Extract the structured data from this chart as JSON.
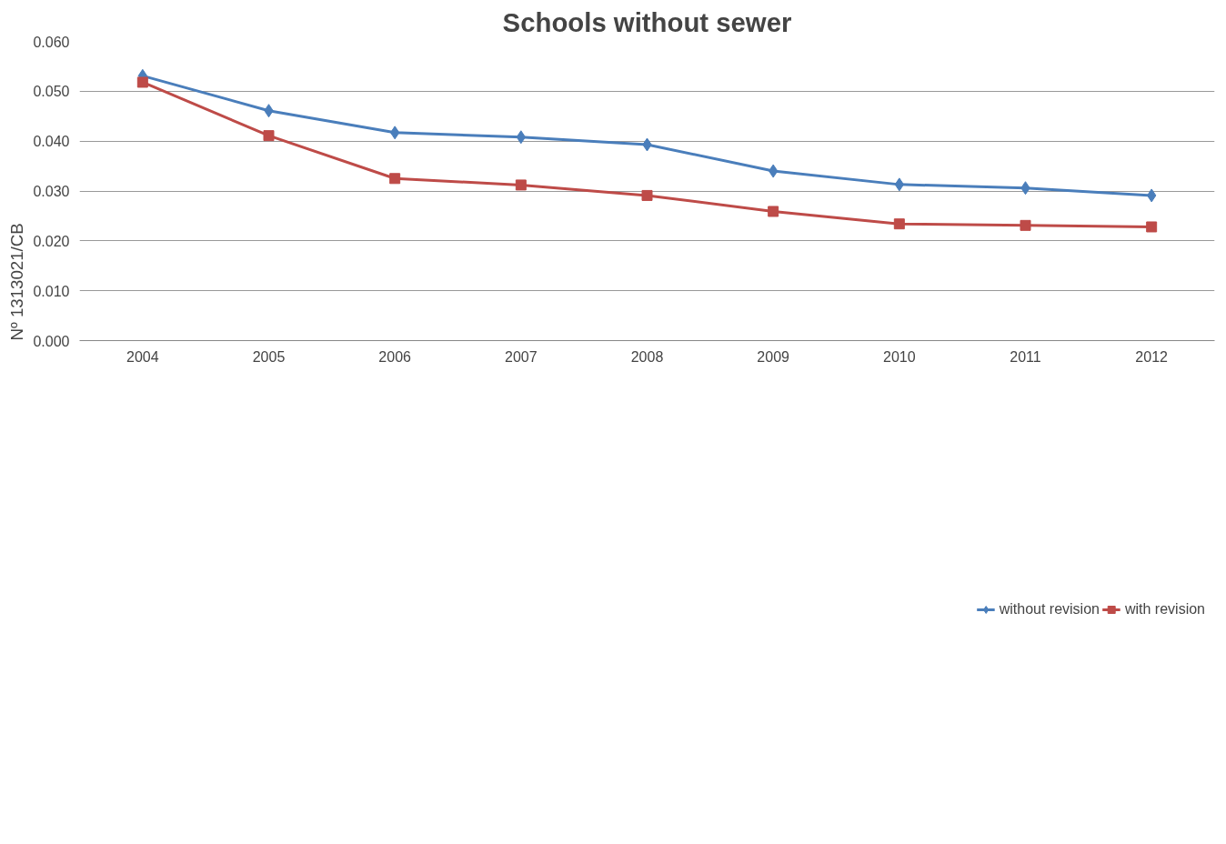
{
  "chart_data": {
    "type": "line",
    "title": "Schools without sewer",
    "categories": [
      "2004",
      "2005",
      "2006",
      "2007",
      "2008",
      "2009",
      "2010",
      "2011",
      "2012"
    ],
    "series": [
      {
        "name": "without revision",
        "color": "#4a7ebb",
        "marker": "diamond",
        "values": [
          0.0531,
          0.0461,
          0.0417,
          0.0408,
          0.0393,
          0.034,
          0.0313,
          0.0306,
          0.0291
        ]
      },
      {
        "name": "with revision",
        "color": "#be4b48",
        "marker": "square",
        "values": [
          0.0518,
          0.0411,
          0.0325,
          0.0312,
          0.0291,
          0.0259,
          0.0234,
          0.0231,
          0.0228
        ]
      }
    ],
    "ylim": [
      0,
      0.06
    ],
    "yticks": [
      {
        "value": 0,
        "label": "0.000"
      },
      {
        "value": 0.01,
        "label": "0.010"
      },
      {
        "value": 0.02,
        "label": "0.020"
      },
      {
        "value": 0.03,
        "label": "0.030"
      },
      {
        "value": 0.04,
        "label": "0.040"
      },
      {
        "value": 0.05,
        "label": "0.050"
      },
      {
        "value": 0.06,
        "label": "0.060"
      }
    ],
    "grid": "y",
    "legend": "bottom",
    "line_style": "solid",
    "annotations": [
      "Nº 1313021/CB"
    ]
  }
}
